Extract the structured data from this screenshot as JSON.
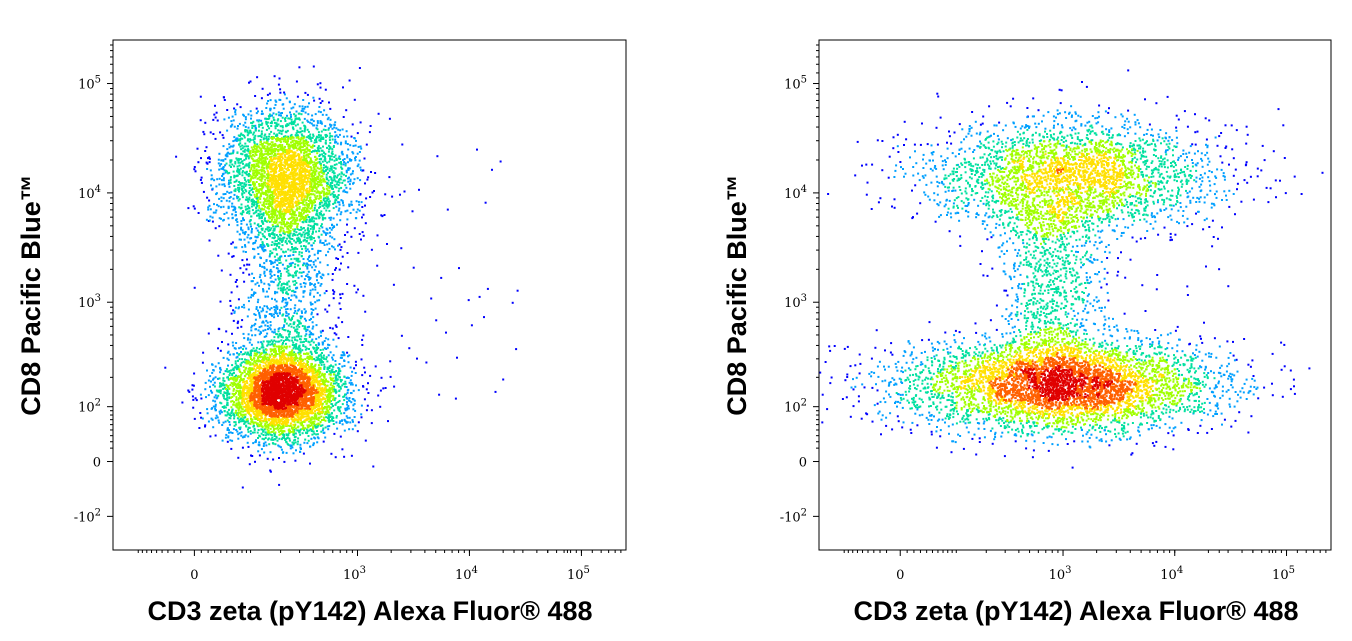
{
  "chart_data": [
    {
      "type": "scatter",
      "subtype": "flow cytometry density dot plot",
      "xlabel": "CD3 zeta (pY142) Alexa Fluor® 488",
      "ylabel": "CD8 Pacific Blue™",
      "x_scale": "biexponential",
      "y_scale": "biexponential",
      "xlim": [
        -180,
        250000
      ],
      "ylim": [
        -220,
        250000
      ],
      "x_ticks": [
        {
          "value": 0,
          "label": "0",
          "exp": ""
        },
        {
          "value": 1000,
          "label": "10",
          "exp": "3"
        },
        {
          "value": 10000,
          "label": "10",
          "exp": "4"
        },
        {
          "value": 100000,
          "label": "10",
          "exp": "5"
        }
      ],
      "y_ticks": [
        {
          "value": -100,
          "label": "-10",
          "exp": "2"
        },
        {
          "value": 0,
          "label": "0",
          "exp": ""
        },
        {
          "value": 100,
          "label": "10",
          "exp": "2"
        },
        {
          "value": 1000,
          "label": "10",
          "exp": "3"
        },
        {
          "value": 10000,
          "label": "10",
          "exp": "4"
        },
        {
          "value": 100000,
          "label": "10",
          "exp": "5"
        }
      ],
      "grid": false,
      "legend": "none",
      "populations": [
        {
          "name": "",
          "x_center": 200,
          "y_center": 140,
          "x_spread": 0.12,
          "y_spread": 0.09,
          "weight": 0.5
        },
        {
          "name": "",
          "x_center": 220,
          "y_center": 15000,
          "x_spread": 0.13,
          "y_spread": 0.13,
          "weight": 0.36
        },
        {
          "name": "",
          "x_center": 230,
          "y_range": [
            200,
            10000
          ],
          "weight": 0.14
        }
      ]
    },
    {
      "type": "scatter",
      "subtype": "flow cytometry density dot plot",
      "xlabel": "CD3 zeta (pY142) Alexa Fluor® 488",
      "ylabel": "CD8 Pacific Blue™",
      "x_scale": "biexponential",
      "y_scale": "biexponential",
      "xlim": [
        -180,
        250000
      ],
      "ylim": [
        -220,
        250000
      ],
      "x_ticks": [
        {
          "value": 0,
          "label": "0",
          "exp": ""
        },
        {
          "value": 1000,
          "label": "10",
          "exp": "3"
        },
        {
          "value": 10000,
          "label": "10",
          "exp": "4"
        },
        {
          "value": 100000,
          "label": "10",
          "exp": "5"
        }
      ],
      "y_ticks": [
        {
          "value": -100,
          "label": "-10",
          "exp": "2"
        },
        {
          "value": 0,
          "label": "0",
          "exp": ""
        },
        {
          "value": 100,
          "label": "10",
          "exp": "2"
        },
        {
          "value": 1000,
          "label": "10",
          "exp": "3"
        },
        {
          "value": 10000,
          "label": "10",
          "exp": "4"
        },
        {
          "value": 100000,
          "label": "10",
          "exp": "5"
        }
      ],
      "grid": false,
      "legend": "none",
      "populations": [
        {
          "name": "",
          "x_center": 950,
          "y_center": 170,
          "x_spread": 0.3,
          "y_spread": 0.09,
          "weight": 0.55
        },
        {
          "name": "",
          "x_center": 1200,
          "y_center": 15000,
          "x_spread": 0.28,
          "y_spread": 0.11,
          "weight": 0.33
        },
        {
          "name": "",
          "x_center": 800,
          "y_range": [
            250,
            9000
          ],
          "weight": 0.12
        }
      ]
    }
  ],
  "colors": {
    "density_scale": [
      "#0000ff",
      "#00a0ff",
      "#00e0a0",
      "#a0ff00",
      "#ffe000",
      "#ff6000",
      "#e00000"
    ],
    "axes": "#000000"
  }
}
